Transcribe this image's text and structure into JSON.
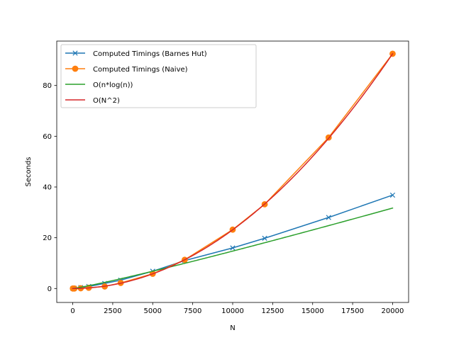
{
  "chart_data": {
    "type": "line",
    "title": "",
    "xlabel": "N",
    "ylabel": "Seconds",
    "xlim": [
      -1000,
      21000
    ],
    "ylim": [
      -5.5,
      97.5
    ],
    "xticks": [
      0,
      2500,
      5000,
      7500,
      10000,
      12500,
      15000,
      17500,
      20000
    ],
    "xtick_labels": [
      "0",
      "2500",
      "5000",
      "7500",
      "10000",
      "12500",
      "15000",
      "17500",
      "20000"
    ],
    "yticks": [
      0,
      20,
      40,
      60,
      80
    ],
    "ytick_labels": [
      "0",
      "20",
      "40",
      "60",
      "80"
    ],
    "grid": false,
    "legend_position": "top-left",
    "series": [
      {
        "name": "Computed Timings (Barnes Hut)",
        "color": "#1f77b4",
        "marker": "x",
        "kind": "points-line",
        "x": [
          10,
          100,
          500,
          1000,
          2000,
          3000,
          5000,
          7000,
          10000,
          12000,
          16000,
          20000
        ],
        "y": [
          0.0,
          0.1,
          0.4,
          0.8,
          2.0,
          3.3,
          6.8,
          11.0,
          16.0,
          19.8,
          28.0,
          36.8
        ]
      },
      {
        "name": "Computed Timings (Naive)",
        "color": "#ff7f0e",
        "marker": "o",
        "kind": "points-line",
        "x": [
          10,
          100,
          500,
          1000,
          2000,
          3000,
          5000,
          7000,
          10000,
          12000,
          16000,
          20000
        ],
        "y": [
          0.0,
          0.0,
          0.1,
          0.3,
          0.8,
          2.2,
          5.8,
          11.3,
          23.2,
          33.2,
          59.5,
          92.5
        ]
      },
      {
        "name": "O(n*log(n))",
        "color": "#2ca02c",
        "marker": "none",
        "kind": "function",
        "func": "nlogn",
        "coef": 0.00016,
        "xrange": [
          1,
          20000
        ]
      },
      {
        "name": "O(N^2)",
        "color": "#d62728",
        "marker": "none",
        "kind": "function",
        "func": "n2",
        "coef": 2.3125e-07,
        "xrange": [
          0,
          20000
        ]
      }
    ]
  }
}
